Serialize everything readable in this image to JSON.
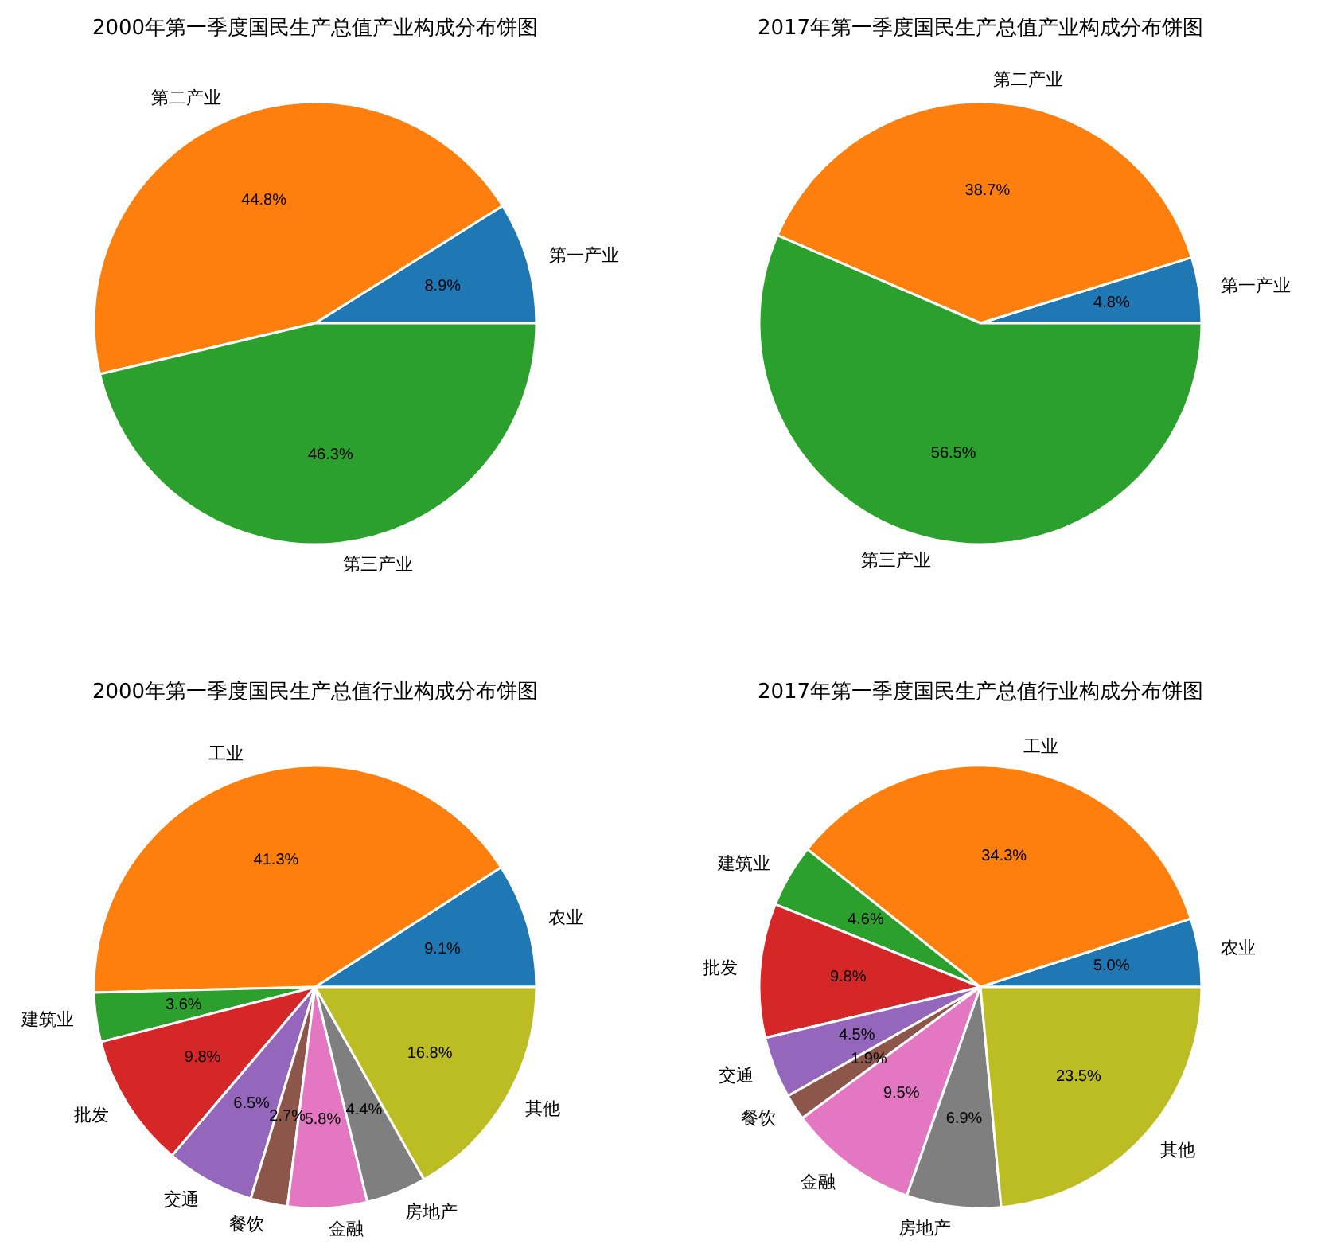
{
  "chart_data": [
    {
      "type": "pie",
      "title": "2000年第一季度国民生产总值产业构成分布饼图",
      "categories": [
        "第一产业",
        "第二产业",
        "第三产业"
      ],
      "values": [
        8.9,
        44.8,
        46.3
      ],
      "colors": [
        "#1f77b4",
        "#ff7f0e",
        "#2ca02c"
      ],
      "value_labels": [
        "8.9%",
        "44.8%",
        "46.3%"
      ]
    },
    {
      "type": "pie",
      "title": "2017年第一季度国民生产总值产业构成分布饼图",
      "categories": [
        "第一产业",
        "第二产业",
        "第三产业"
      ],
      "values": [
        4.8,
        38.7,
        56.5
      ],
      "colors": [
        "#1f77b4",
        "#ff7f0e",
        "#2ca02c"
      ],
      "value_labels": [
        "4.8%",
        "38.7%",
        "56.5%"
      ]
    },
    {
      "type": "pie",
      "title": "2000年第一季度国民生产总值行业构成分布饼图",
      "categories": [
        "农业",
        "工业",
        "建筑业",
        "批发",
        "交通",
        "餐饮",
        "金融",
        "房地产",
        "其他"
      ],
      "values": [
        9.1,
        41.3,
        3.6,
        9.8,
        6.5,
        2.7,
        5.8,
        4.4,
        16.8
      ],
      "colors": [
        "#1f77b4",
        "#ff7f0e",
        "#2ca02c",
        "#d62728",
        "#9467bd",
        "#8c564b",
        "#e377c2",
        "#7f7f7f",
        "#bcbd22"
      ],
      "value_labels": [
        "9.1%",
        "41.3%",
        "3.6%",
        "9.8%",
        "6.5%",
        "2.7%",
        "5.8%",
        "4.4%",
        "16.8%"
      ]
    },
    {
      "type": "pie",
      "title": "2017年第一季度国民生产总值行业构成分布饼图",
      "categories": [
        "农业",
        "工业",
        "建筑业",
        "批发",
        "交通",
        "餐饮",
        "金融",
        "房地产",
        "其他"
      ],
      "values": [
        5.0,
        34.3,
        4.6,
        9.8,
        4.5,
        1.9,
        9.5,
        6.9,
        23.5
      ],
      "colors": [
        "#1f77b4",
        "#ff7f0e",
        "#2ca02c",
        "#d62728",
        "#9467bd",
        "#8c564b",
        "#e377c2",
        "#7f7f7f",
        "#bcbd22"
      ],
      "value_labels": [
        "5.0%",
        "34.3%",
        "4.6%",
        "9.8%",
        "4.5%",
        "1.9%",
        "9.5%",
        "6.9%",
        "23.5%"
      ]
    }
  ]
}
